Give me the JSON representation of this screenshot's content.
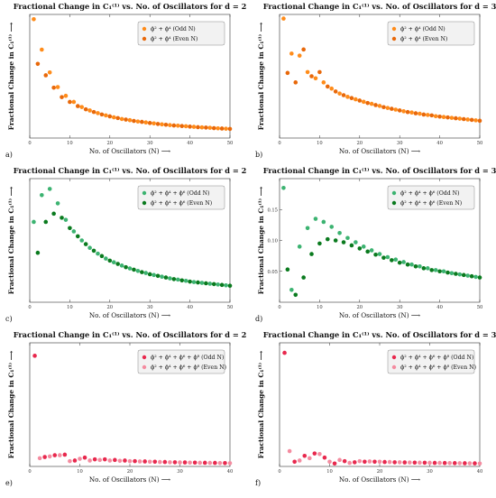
{
  "figure": {
    "chart_data": [
      {
        "id": "a",
        "type": "scatter",
        "title": "Fractional Change in C₁⁽¹⁾ vs. No. of Oscillators for d = 2",
        "xlabel": "No. of Oscillators (N) ⟶",
        "ylabel": "Fractional Change in C₁⁽¹⁾ ⟶",
        "xlim": [
          0,
          50
        ],
        "ylim": [
          0,
          0.65
        ],
        "xticks": [
          "0",
          "10",
          "20",
          "30",
          "40",
          "50"
        ],
        "yticks": [],
        "legend_position": "top-right",
        "series": [
          {
            "name": "ϕ² + ϕ⁴ (Odd N)",
            "color": "#ff8c1a",
            "x": [
              1,
              3,
              5,
              7,
              9,
              11,
              13,
              15,
              17,
              19,
              21,
              23,
              25,
              27,
              29,
              31,
              33,
              35,
              37,
              39,
              41,
              43,
              45,
              47,
              49
            ],
            "y": [
              0.625,
              0.465,
              0.345,
              0.268,
              0.222,
              0.19,
              0.163,
              0.145,
              0.131,
              0.119,
              0.109,
              0.1,
              0.094,
              0.087,
              0.082,
              0.077,
              0.072,
              0.068,
              0.065,
              0.062,
              0.059,
              0.056,
              0.054,
              0.051,
              0.049
            ]
          },
          {
            "name": "ϕ² + ϕ⁴ (Even N)",
            "color": "#e8680a",
            "x": [
              2,
              4,
              6,
              8,
              10,
              12,
              14,
              16,
              18,
              20,
              22,
              24,
              26,
              28,
              30,
              32,
              34,
              36,
              38,
              40,
              42,
              44,
              46,
              48,
              50
            ],
            "y": [
              0.39,
              0.33,
              0.265,
              0.215,
              0.19,
              0.168,
              0.151,
              0.137,
              0.124,
              0.114,
              0.105,
              0.097,
              0.09,
              0.085,
              0.079,
              0.074,
              0.07,
              0.066,
              0.063,
              0.06,
              0.057,
              0.055,
              0.052,
              0.05,
              0.048
            ]
          }
        ]
      },
      {
        "id": "b",
        "type": "scatter",
        "title": "Fractional Change in C₁⁽¹⁾ vs. No. of Oscillators for d = 3",
        "xlabel": "No. of Oscillators (N) ⟶",
        "ylabel": "Fractional Change in C₁⁽¹⁾ ⟶",
        "xlim": [
          0,
          50
        ],
        "ylim": [
          0,
          0.3
        ],
        "xticks": [
          "0",
          "10",
          "20",
          "30",
          "40",
          "50"
        ],
        "yticks": [],
        "legend_position": "top-right",
        "series": [
          {
            "name": "ϕ² + ϕ⁴ (Odd N)",
            "color": "#ff8c1a",
            "x": [
              1,
              3,
              5,
              7,
              9,
              11,
              13,
              15,
              17,
              19,
              21,
              23,
              25,
              27,
              29,
              31,
              33,
              35,
              37,
              39,
              41,
              43,
              45,
              47,
              49
            ],
            "y": [
              0.29,
              0.205,
              0.2,
              0.16,
              0.145,
              0.135,
              0.12,
              0.108,
              0.1,
              0.094,
              0.088,
              0.083,
              0.078,
              0.073,
              0.069,
              0.065,
              0.062,
              0.059,
              0.056,
              0.053,
              0.051,
              0.049,
              0.047,
              0.045,
              0.043
            ]
          },
          {
            "name": "ϕ² + ϕ⁴ (Even N)",
            "color": "#e8680a",
            "x": [
              2,
              4,
              6,
              8,
              10,
              12,
              14,
              16,
              18,
              20,
              22,
              24,
              26,
              28,
              30,
              32,
              34,
              36,
              38,
              40,
              42,
              44,
              46,
              48,
              50
            ],
            "y": [
              0.158,
              0.135,
              0.215,
              0.15,
              0.16,
              0.125,
              0.113,
              0.104,
              0.097,
              0.091,
              0.085,
              0.08,
              0.075,
              0.071,
              0.067,
              0.063,
              0.06,
              0.057,
              0.055,
              0.052,
              0.05,
              0.048,
              0.046,
              0.044,
              0.042
            ]
          }
        ]
      },
      {
        "id": "c",
        "type": "scatter",
        "title": "Fractional Change in C₁⁽¹⁾ vs. No. of Oscillators for d = 2",
        "xlabel": "No. of Oscillators (N) ⟶",
        "ylabel": "Fractional Change in C₁⁽¹⁾ ⟶",
        "xlim": [
          0,
          50
        ],
        "ylim": [
          0,
          0.3
        ],
        "xticks": [
          "0",
          "10",
          "20",
          "30",
          "40",
          "50"
        ],
        "yticks": [],
        "legend_position": "top-right",
        "series": [
          {
            "name": "ϕ² + ϕ⁴ + ϕ⁶ (Odd N)",
            "color": "#3cb371",
            "x": [
              1,
              3,
              5,
              7,
              9,
              11,
              13,
              15,
              17,
              19,
              21,
              23,
              25,
              27,
              29,
              31,
              33,
              35,
              37,
              39,
              41,
              43,
              45,
              47,
              49
            ],
            "y": [
              0.195,
              0.26,
              0.275,
              0.24,
              0.2,
              0.172,
              0.15,
              0.132,
              0.118,
              0.106,
              0.097,
              0.089,
              0.082,
              0.076,
              0.071,
              0.066,
              0.062,
              0.058,
              0.055,
              0.052,
              0.049,
              0.047,
              0.045,
              0.043,
              0.041
            ]
          },
          {
            "name": "ϕ² + ϕ⁴ + ϕ⁶ (Even N)",
            "color": "#0a7a1e",
            "x": [
              2,
              4,
              6,
              8,
              10,
              12,
              14,
              16,
              18,
              20,
              22,
              24,
              26,
              28,
              30,
              32,
              34,
              36,
              38,
              40,
              42,
              44,
              46,
              48,
              50
            ],
            "y": [
              0.12,
              0.195,
              0.215,
              0.205,
              0.18,
              0.16,
              0.141,
              0.125,
              0.112,
              0.101,
              0.093,
              0.085,
              0.079,
              0.073,
              0.068,
              0.064,
              0.06,
              0.056,
              0.053,
              0.05,
              0.048,
              0.046,
              0.044,
              0.042,
              0.04
            ]
          }
        ]
      },
      {
        "id": "d",
        "type": "scatter",
        "title": "Fractional Change in C₁⁽¹⁾ vs. No. of Oscillators for d = 3",
        "xlabel": "No. of Oscillators (N) ⟶",
        "ylabel": "Fractional Change in C₁⁽¹⁾ ⟶",
        "xlim": [
          0,
          50
        ],
        "ylim": [
          0,
          0.2
        ],
        "xticks": [
          "0",
          "10",
          "20",
          "30",
          "40",
          "50"
        ],
        "yticks": [
          "0.05",
          "0.10",
          "0.15"
        ],
        "legend_position": "top-right",
        "series": [
          {
            "name": "ϕ² + ϕ⁴ + ϕ⁶ (Odd N)",
            "color": "#3cb371",
            "x": [
              1,
              3,
              5,
              7,
              9,
              11,
              13,
              15,
              17,
              19,
              21,
              23,
              25,
              27,
              29,
              31,
              33,
              35,
              37,
              39,
              41,
              43,
              45,
              47,
              49
            ],
            "y": [
              0.185,
              0.02,
              0.09,
              0.12,
              0.135,
              0.13,
              0.122,
              0.112,
              0.104,
              0.097,
              0.09,
              0.084,
              0.078,
              0.073,
              0.069,
              0.065,
              0.061,
              0.058,
              0.055,
              0.052,
              0.05,
              0.047,
              0.045,
              0.043,
              0.041
            ]
          },
          {
            "name": "ϕ² + ϕ⁴ + ϕ⁶ (Even N)",
            "color": "#0a7a1e",
            "x": [
              2,
              4,
              6,
              8,
              10,
              12,
              14,
              16,
              18,
              20,
              22,
              24,
              26,
              28,
              30,
              32,
              34,
              36,
              38,
              40,
              42,
              44,
              46,
              48,
              50
            ],
            "y": [
              0.053,
              0.012,
              0.04,
              0.078,
              0.095,
              0.102,
              0.1,
              0.097,
              0.092,
              0.087,
              0.082,
              0.077,
              0.072,
              0.068,
              0.064,
              0.061,
              0.058,
              0.055,
              0.052,
              0.05,
              0.048,
              0.046,
              0.044,
              0.042,
              0.04
            ]
          }
        ]
      },
      {
        "id": "e",
        "type": "scatter",
        "title": "Fractional Change in C₁⁽¹⁾ vs. No. of Oscillators for d = 2",
        "xlabel": "No. of Oscillators (N) ⟶",
        "ylabel": "Fractional Change in C₁⁽¹⁾ ⟶",
        "xlim": [
          0,
          40
        ],
        "ylim": [
          0,
          2.1
        ],
        "xticks": [
          "0",
          "10",
          "20",
          "30",
          "40"
        ],
        "yticks": [],
        "legend_position": "top-right",
        "series": [
          {
            "name": "ϕ² + ϕ⁴ + ϕ⁶ + ϕ⁸ (Odd N)",
            "color": "#e8284d",
            "x": [
              1,
              3,
              5,
              7,
              9,
              11,
              13,
              15,
              17,
              19,
              21,
              23,
              25,
              27,
              29,
              31,
              33,
              35,
              37,
              39
            ],
            "y": [
              1.88,
              0.16,
              0.19,
              0.2,
              0.1,
              0.15,
              0.12,
              0.12,
              0.11,
              0.1,
              0.09,
              0.085,
              0.08,
              0.075,
              0.07,
              0.068,
              0.065,
              0.062,
              0.06,
              0.057
            ]
          },
          {
            "name": "ϕ² + ϕ⁴ + ϕ⁶ + ϕ⁸ (Even N)",
            "color": "#f48ca0",
            "x": [
              2,
              4,
              6,
              8,
              10,
              12,
              14,
              16,
              18,
              20,
              22,
              24,
              26,
              28,
              30,
              32,
              34,
              36,
              38,
              40
            ],
            "y": [
              0.14,
              0.17,
              0.19,
              0.09,
              0.13,
              0.1,
              0.11,
              0.1,
              0.095,
              0.09,
              0.085,
              0.08,
              0.075,
              0.07,
              0.068,
              0.065,
              0.062,
              0.06,
              0.057,
              0.055
            ]
          }
        ]
      },
      {
        "id": "f",
        "type": "scatter",
        "title": "Fractional Change in C₁⁽¹⁾ vs. No. of Oscillators for d = 3",
        "xlabel": "No. of Oscillators (N) ⟶",
        "ylabel": "Fractional Change in C₁⁽¹⁾ ⟶",
        "xlim": [
          0,
          40
        ],
        "ylim": [
          0,
          2.1
        ],
        "xticks": [
          "0",
          "10",
          "20",
          "30",
          "40"
        ],
        "yticks": [],
        "legend_position": "top-right",
        "series": [
          {
            "name": "ϕ² + ϕ⁴ + ϕ⁶ + ϕ⁸ (Odd N)",
            "color": "#e8284d",
            "x": [
              1,
              3,
              5,
              7,
              9,
              11,
              13,
              15,
              17,
              19,
              21,
              23,
              25,
              27,
              29,
              31,
              33,
              35,
              37,
              39
            ],
            "y": [
              1.93,
              0.08,
              0.18,
              0.22,
              0.15,
              0.05,
              0.09,
              0.07,
              0.08,
              0.08,
              0.075,
              0.07,
              0.068,
              0.065,
              0.063,
              0.06,
              0.058,
              0.056,
              0.054,
              0.052
            ]
          },
          {
            "name": "ϕ² + ϕ⁴ + ϕ⁶ + ϕ⁸ (Even N)",
            "color": "#f48ca0",
            "x": [
              2,
              4,
              6,
              8,
              10,
              12,
              14,
              16,
              18,
              20,
              22,
              24,
              26,
              28,
              30,
              32,
              34,
              36,
              38,
              40
            ],
            "y": [
              0.26,
              0.1,
              0.14,
              0.21,
              0.08,
              0.11,
              0.06,
              0.09,
              0.085,
              0.08,
              0.075,
              0.07,
              0.067,
              0.064,
              0.062,
              0.06,
              0.057,
              0.055,
              0.053,
              0.05
            ]
          }
        ]
      }
    ]
  }
}
